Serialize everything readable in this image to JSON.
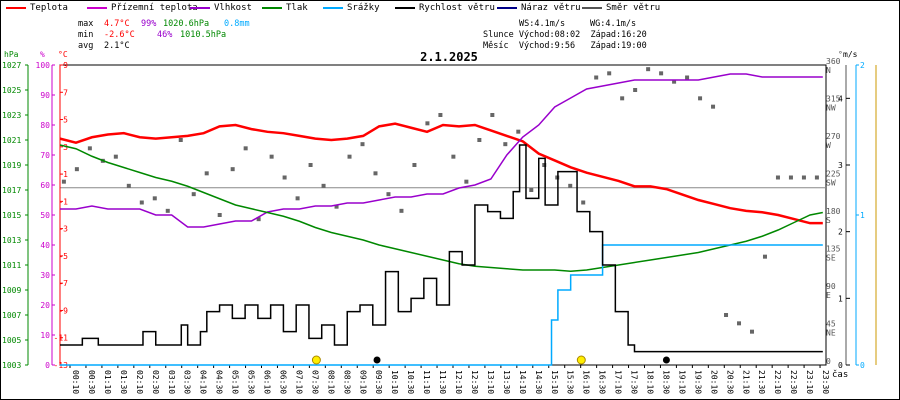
{
  "legend": [
    {
      "label": "Teplota",
      "color": "#ff0000"
    },
    {
      "label": "Přízemní teplota",
      "color": "#cc00cc"
    },
    {
      "label": "Vlhkost",
      "color": "#9900cc"
    },
    {
      "label": "Tlak",
      "color": "#008800"
    },
    {
      "label": "Srážky",
      "color": "#00aaff"
    },
    {
      "label": "Rychlost větru",
      "color": "#000000"
    },
    {
      "label": "Náraz větru",
      "color": "#000088"
    },
    {
      "label": "Směr větru",
      "color": "#555555"
    }
  ],
  "stats": {
    "max_label": "max",
    "max_temp": "4.7°C",
    "max_hum": "99%",
    "max_press": "1020.6hPa",
    "max_rain": "0.8mm",
    "min_label": "min",
    "min_temp": "-2.6°C",
    "min_hum": "46%",
    "min_press": "1010.5hPa",
    "avg_label": "avg",
    "avg_temp": "2.1°C"
  },
  "astro": {
    "ws": "WS:4.1m/s",
    "wg": "WG:4.1m/s",
    "sun": "Slunce Východ:08:02  Západ:16:20",
    "moon": "Měsíc  Východ:9:56   Západ:19:00"
  },
  "chart_data": {
    "type": "line",
    "title": "2.1.2025",
    "xlabel": "čas",
    "axis_units": {
      "pressure": "hPa",
      "humidity": "%",
      "temperature": "°C",
      "direction": "°",
      "wind": "m/s",
      "rain": "mm"
    },
    "x_ticks": [
      "00:10",
      "00:30",
      "01:10",
      "01:30",
      "02:10",
      "02:30",
      "03:10",
      "03:30",
      "04:10",
      "04:30",
      "05:10",
      "05:30",
      "06:10",
      "06:30",
      "07:10",
      "07:30",
      "08:10",
      "08:30",
      "09:10",
      "09:30",
      "10:10",
      "10:30",
      "11:10",
      "11:30",
      "12:10",
      "12:30",
      "13:10",
      "13:30",
      "14:10",
      "14:30",
      "15:10",
      "15:30",
      "16:10",
      "16:30",
      "17:10",
      "17:30",
      "18:10",
      "18:30",
      "19:10",
      "19:30",
      "20:10",
      "20:30",
      "21:10",
      "21:30",
      "22:10",
      "22:30",
      "23:10",
      "23:30"
    ],
    "pressure_ticks": [
      "1027",
      "1025",
      "1023",
      "1021",
      "1019",
      "1017",
      "1015",
      "1013",
      "1011",
      "1009",
      "1007",
      "1005",
      "1003"
    ],
    "humidity_ticks": [
      "100",
      "90",
      "80",
      "70",
      "60",
      "50",
      "40",
      "30",
      "20",
      "10",
      "0"
    ],
    "temperature_ticks": [
      "9",
      "7",
      "5",
      "3",
      "1",
      "-1",
      "-3",
      "-5",
      "-7",
      "-9",
      "-11",
      "-13"
    ],
    "direction_ticks": [
      "360 N",
      "315 NW",
      "270 W",
      "225 SW",
      "180 S",
      "135 SE",
      "90 E",
      "45 NE",
      "0"
    ],
    "wind_ticks": [
      "4",
      "3",
      "2",
      "1",
      "0"
    ],
    "rain_ticks": [
      "2",
      "1",
      "0"
    ],
    "ranges": {
      "hours": [
        0,
        24
      ],
      "pressure": [
        1003,
        1027
      ],
      "humidity": [
        0,
        100
      ],
      "temperature": [
        -13,
        9
      ],
      "direction": [
        0,
        360
      ],
      "wind": [
        0,
        4.5
      ],
      "rain": [
        0,
        2
      ]
    },
    "series": [
      {
        "name": "Teplota",
        "unit": "°C",
        "color": "#ff0000",
        "points": [
          [
            0,
            3.6
          ],
          [
            0.5,
            3.3
          ],
          [
            1,
            3.7
          ],
          [
            1.5,
            3.9
          ],
          [
            2,
            4.0
          ],
          [
            2.5,
            3.7
          ],
          [
            3,
            3.6
          ],
          [
            3.5,
            3.7
          ],
          [
            4,
            3.8
          ],
          [
            4.5,
            4.0
          ],
          [
            5,
            4.5
          ],
          [
            5.5,
            4.6
          ],
          [
            6,
            4.3
          ],
          [
            6.5,
            4.1
          ],
          [
            7,
            4.0
          ],
          [
            7.5,
            3.8
          ],
          [
            8,
            3.6
          ],
          [
            8.5,
            3.5
          ],
          [
            9,
            3.6
          ],
          [
            9.5,
            3.8
          ],
          [
            10,
            4.5
          ],
          [
            10.5,
            4.7
          ],
          [
            11,
            4.4
          ],
          [
            11.5,
            4.1
          ],
          [
            12,
            4.6
          ],
          [
            12.5,
            4.5
          ],
          [
            13,
            4.6
          ],
          [
            13.5,
            4.2
          ],
          [
            14,
            3.8
          ],
          [
            14.5,
            3.4
          ],
          [
            15,
            2.5
          ],
          [
            15.5,
            2.0
          ],
          [
            16,
            1.5
          ],
          [
            16.5,
            1.1
          ],
          [
            17,
            0.8
          ],
          [
            17.5,
            0.5
          ],
          [
            18,
            0.1
          ],
          [
            18.5,
            0.1
          ],
          [
            19,
            -0.1
          ],
          [
            19.5,
            -0.5
          ],
          [
            20,
            -0.9
          ],
          [
            20.5,
            -1.2
          ],
          [
            21,
            -1.5
          ],
          [
            21.5,
            -1.7
          ],
          [
            22,
            -1.8
          ],
          [
            22.5,
            -2.0
          ],
          [
            23,
            -2.3
          ],
          [
            23.5,
            -2.6
          ],
          [
            23.9,
            -2.6
          ]
        ]
      },
      {
        "name": "Vlhkost",
        "unit": "%",
        "color": "#9900cc",
        "points": [
          [
            0,
            52
          ],
          [
            0.5,
            52
          ],
          [
            1,
            53
          ],
          [
            1.5,
            52
          ],
          [
            2,
            52
          ],
          [
            2.5,
            52
          ],
          [
            3,
            50
          ],
          [
            3.5,
            50
          ],
          [
            4,
            46
          ],
          [
            4.5,
            46
          ],
          [
            5,
            47
          ],
          [
            5.5,
            48
          ],
          [
            6,
            48
          ],
          [
            6.5,
            51
          ],
          [
            7,
            52
          ],
          [
            7.5,
            52
          ],
          [
            8,
            53
          ],
          [
            8.5,
            53
          ],
          [
            9,
            54
          ],
          [
            9.5,
            54
          ],
          [
            10,
            55
          ],
          [
            10.5,
            56
          ],
          [
            11,
            56
          ],
          [
            11.5,
            57
          ],
          [
            12,
            57
          ],
          [
            12.5,
            59
          ],
          [
            13,
            60
          ],
          [
            13.5,
            62
          ],
          [
            14,
            70
          ],
          [
            14.5,
            76
          ],
          [
            15,
            80
          ],
          [
            15.5,
            86
          ],
          [
            16,
            89
          ],
          [
            16.5,
            92
          ],
          [
            17,
            93
          ],
          [
            17.5,
            94
          ],
          [
            18,
            95
          ],
          [
            18.5,
            95
          ],
          [
            19,
            95
          ],
          [
            19.5,
            95
          ],
          [
            20,
            95
          ],
          [
            20.5,
            96
          ],
          [
            21,
            97
          ],
          [
            21.5,
            97
          ],
          [
            22,
            96
          ],
          [
            22.5,
            96
          ],
          [
            23,
            96
          ],
          [
            23.5,
            96
          ],
          [
            23.9,
            96
          ]
        ]
      },
      {
        "name": "Tlak",
        "unit": "hPa",
        "color": "#008800",
        "points": [
          [
            0,
            1020.6
          ],
          [
            0.5,
            1020.3
          ],
          [
            1,
            1019.7
          ],
          [
            1.5,
            1019.2
          ],
          [
            2,
            1018.8
          ],
          [
            2.5,
            1018.4
          ],
          [
            3,
            1018.0
          ],
          [
            3.5,
            1017.7
          ],
          [
            4,
            1017.3
          ],
          [
            4.5,
            1016.8
          ],
          [
            5,
            1016.3
          ],
          [
            5.5,
            1015.8
          ],
          [
            6,
            1015.5
          ],
          [
            6.5,
            1015.2
          ],
          [
            7,
            1014.9
          ],
          [
            7.5,
            1014.5
          ],
          [
            8,
            1014.0
          ],
          [
            8.5,
            1013.6
          ],
          [
            9,
            1013.3
          ],
          [
            9.5,
            1013.0
          ],
          [
            10,
            1012.6
          ],
          [
            10.5,
            1012.3
          ],
          [
            11,
            1012.0
          ],
          [
            11.5,
            1011.7
          ],
          [
            12,
            1011.4
          ],
          [
            12.5,
            1011.1
          ],
          [
            13,
            1010.9
          ],
          [
            13.5,
            1010.8
          ],
          [
            14,
            1010.7
          ],
          [
            14.5,
            1010.6
          ],
          [
            15,
            1010.6
          ],
          [
            15.5,
            1010.6
          ],
          [
            16,
            1010.5
          ],
          [
            16.5,
            1010.6
          ],
          [
            17,
            1010.8
          ],
          [
            17.5,
            1011.0
          ],
          [
            18,
            1011.2
          ],
          [
            18.5,
            1011.4
          ],
          [
            19,
            1011.6
          ],
          [
            19.5,
            1011.8
          ],
          [
            20,
            1012.0
          ],
          [
            20.5,
            1012.3
          ],
          [
            21,
            1012.6
          ],
          [
            21.5,
            1012.9
          ],
          [
            22,
            1013.3
          ],
          [
            22.5,
            1013.8
          ],
          [
            23,
            1014.4
          ],
          [
            23.5,
            1015.0
          ],
          [
            23.9,
            1015.2
          ]
        ]
      },
      {
        "name": "Srážky",
        "unit": "mm",
        "color": "#00aaff",
        "points": [
          [
            0,
            0
          ],
          [
            15.2,
            0
          ],
          [
            15.4,
            0.3
          ],
          [
            15.6,
            0.5
          ],
          [
            16,
            0.6
          ],
          [
            16.5,
            0.6
          ],
          [
            17,
            0.8
          ],
          [
            17.5,
            0.8
          ],
          [
            23.9,
            0.8
          ]
        ]
      },
      {
        "name": "Rychlost větru",
        "unit": "m/s",
        "color": "#000000",
        "points": [
          [
            0,
            0.3
          ],
          [
            0.6,
            0.3
          ],
          [
            0.7,
            0.4
          ],
          [
            1.1,
            0.4
          ],
          [
            1.2,
            0.3
          ],
          [
            2.5,
            0.3
          ],
          [
            2.6,
            0.5
          ],
          [
            3,
            0.3
          ],
          [
            3.6,
            0.3
          ],
          [
            3.8,
            0.6
          ],
          [
            4,
            0.3
          ],
          [
            4.4,
            0.5
          ],
          [
            4.6,
            0.8
          ],
          [
            5,
            0.9
          ],
          [
            5.4,
            0.7
          ],
          [
            5.8,
            0.9
          ],
          [
            6.2,
            0.7
          ],
          [
            6.6,
            0.9
          ],
          [
            7,
            0.5
          ],
          [
            7.4,
            0.9
          ],
          [
            7.8,
            0.4
          ],
          [
            8.2,
            0.6
          ],
          [
            8.6,
            0.3
          ],
          [
            9,
            0.8
          ],
          [
            9.4,
            0.9
          ],
          [
            9.8,
            0.6
          ],
          [
            10.2,
            1.4
          ],
          [
            10.6,
            0.8
          ],
          [
            11,
            1.0
          ],
          [
            11.4,
            1.3
          ],
          [
            11.8,
            0.9
          ],
          [
            12.2,
            1.7
          ],
          [
            12.6,
            1.5
          ],
          [
            13,
            2.4
          ],
          [
            13.4,
            2.3
          ],
          [
            13.8,
            2.2
          ],
          [
            14.2,
            2.6
          ],
          [
            14.4,
            3.3
          ],
          [
            14.6,
            2.5
          ],
          [
            15,
            3.1
          ],
          [
            15.2,
            2.4
          ],
          [
            15.6,
            2.9
          ],
          [
            16.2,
            2.3
          ],
          [
            16.6,
            2.0
          ],
          [
            17,
            1.5
          ],
          [
            17.4,
            0.8
          ],
          [
            17.8,
            0.3
          ],
          [
            18,
            0.2
          ],
          [
            23.9,
            0.2
          ]
        ]
      }
    ],
    "wind_direction_deg": [
      220,
      235,
      260,
      245,
      250,
      215,
      195,
      200,
      185,
      270,
      205,
      230,
      180,
      235,
      260,
      175,
      250,
      225,
      200,
      240,
      215,
      190,
      250,
      265,
      230,
      205,
      185,
      240,
      290,
      300,
      250,
      220,
      270,
      300,
      265,
      280,
      210,
      240,
      225,
      215,
      195,
      345,
      350,
      320,
      330,
      355,
      350,
      340,
      345,
      320,
      310,
      60,
      50,
      40,
      130,
      225,
      225,
      225,
      225
    ]
  }
}
